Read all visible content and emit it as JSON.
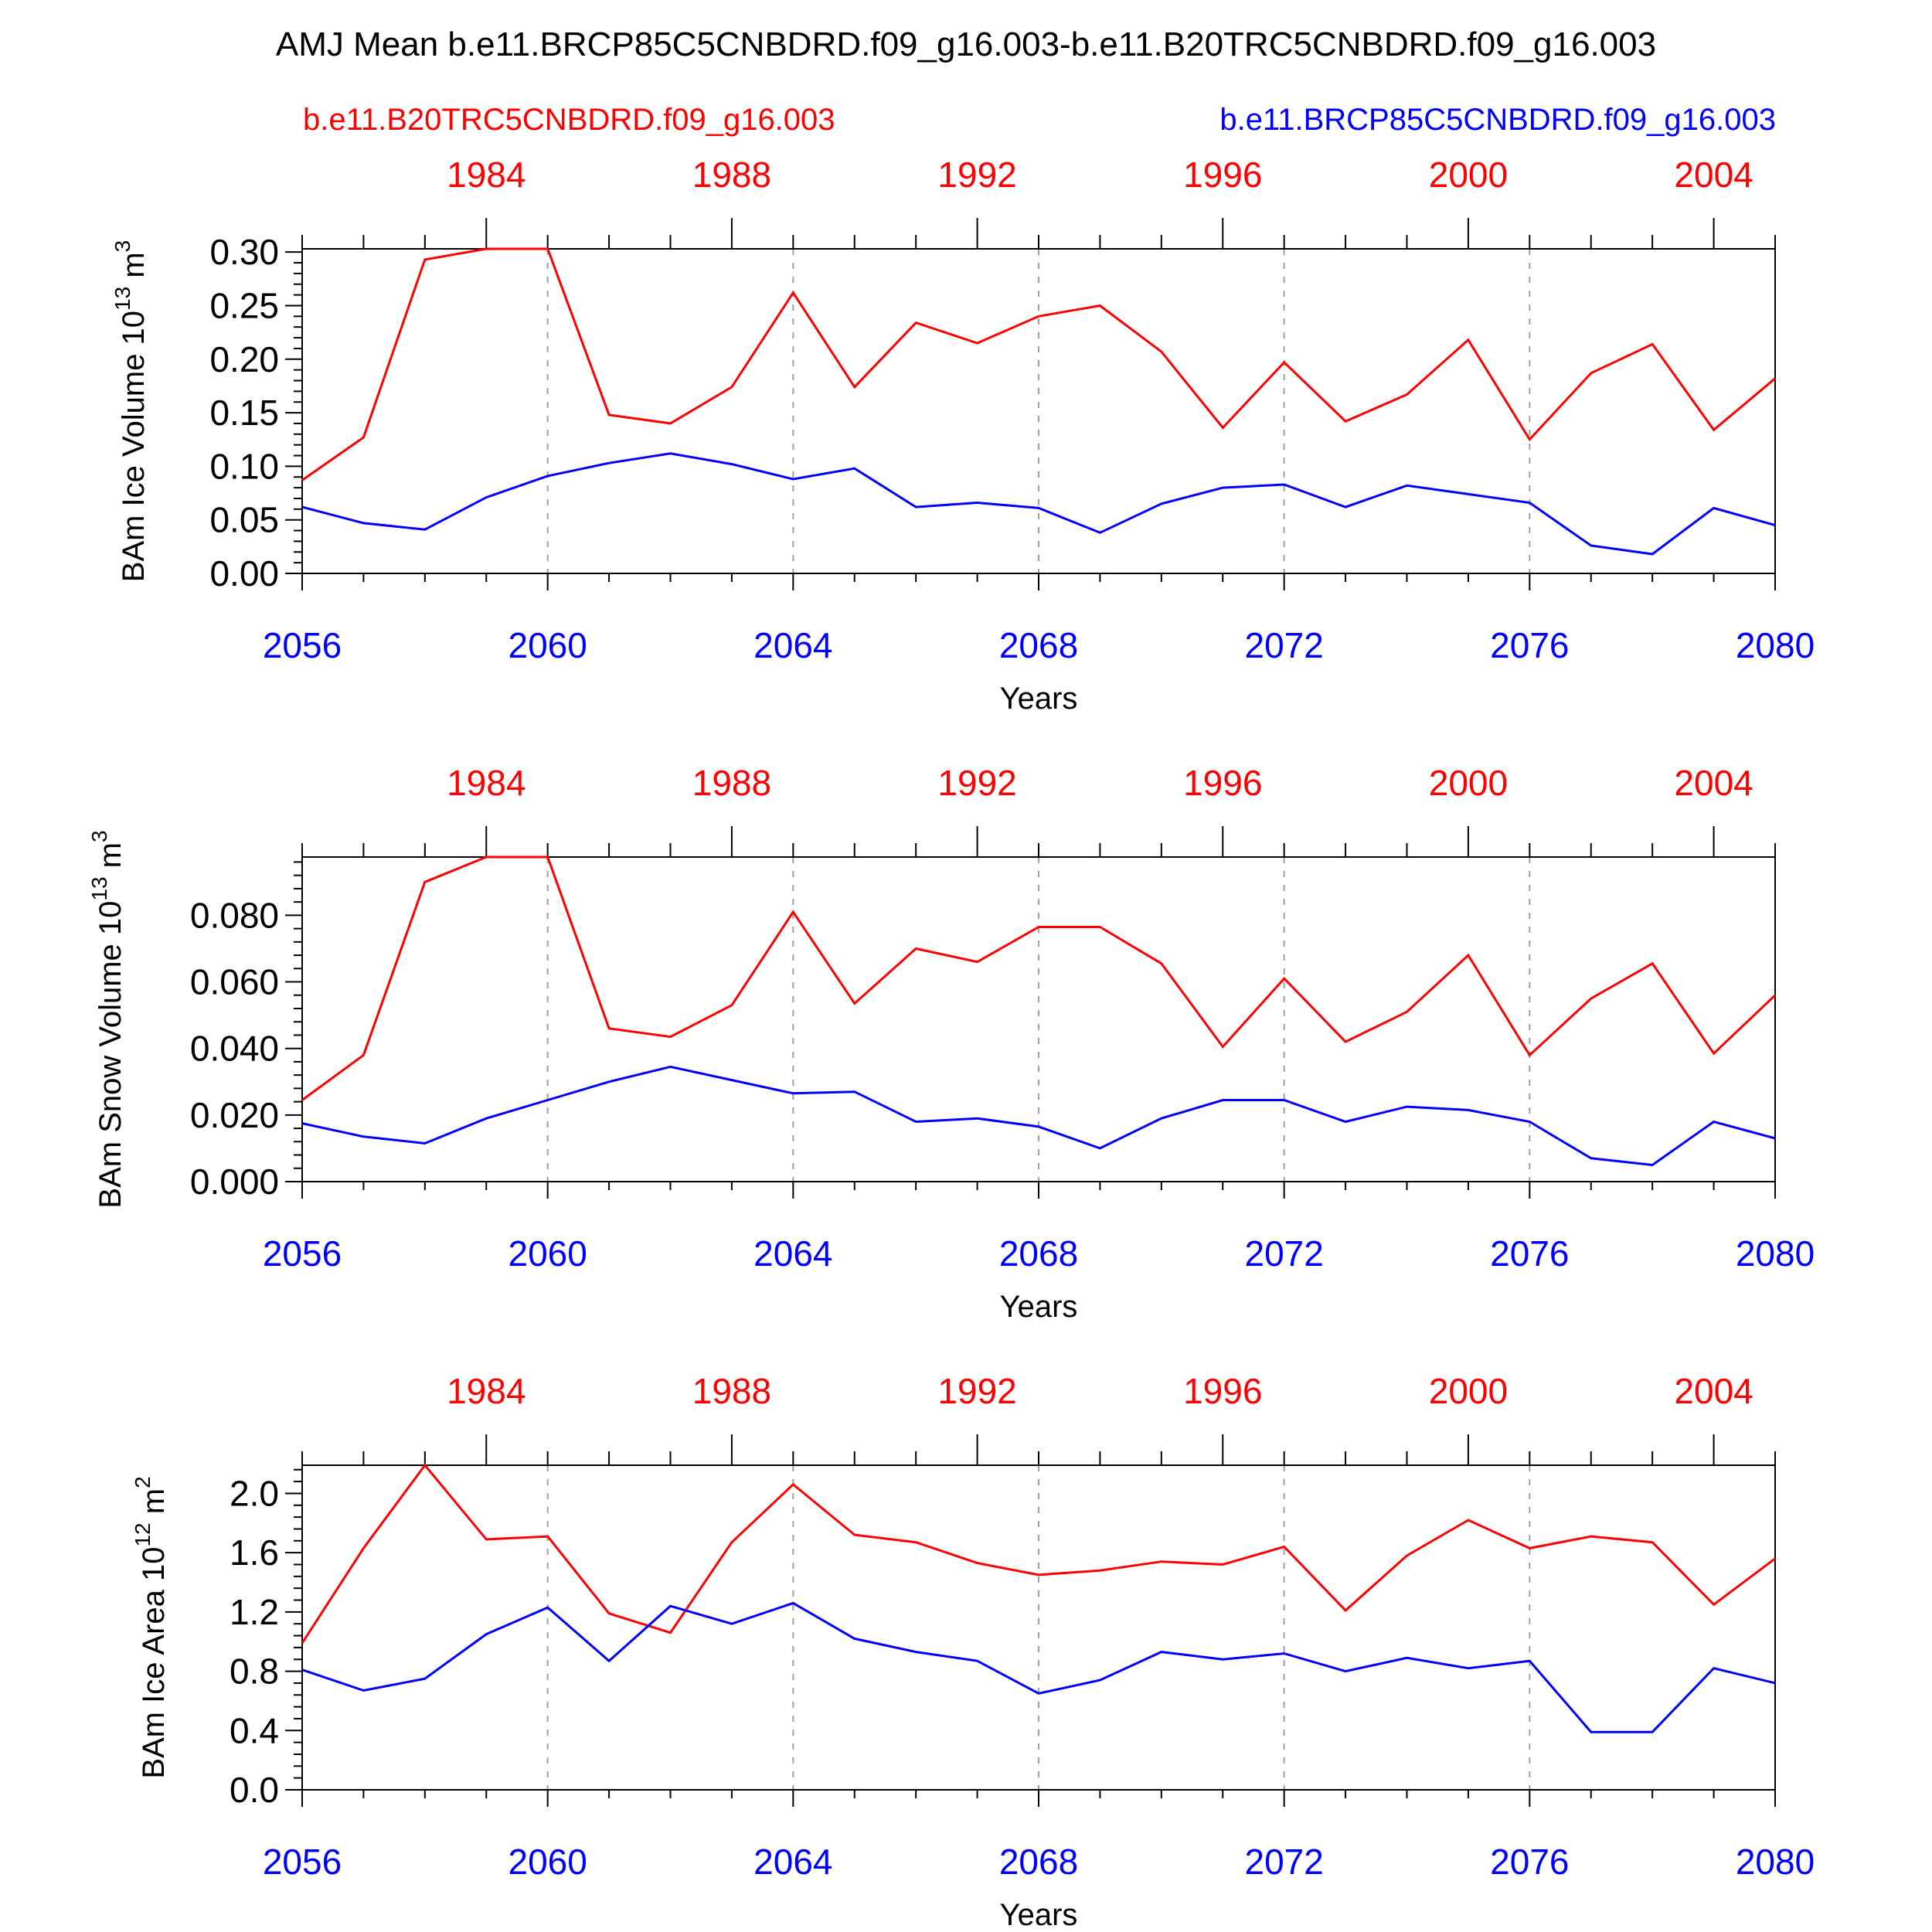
{
  "figure": {
    "title": "AMJ Mean b.e11.BRCP85C5CNBDRD.f09_g16.003-b.e11.B20TRC5CNBDRD.f09_g16.003",
    "left_subtitle": "b.e11.B20TRC5CNBDRD.f09_g16.003",
    "right_subtitle": "b.e11.BRCP85C5CNBDRD.f09_g16.003",
    "colors": {
      "historical": "#ff0000",
      "future": "#0000ff",
      "grid": "#a0a0a0"
    }
  },
  "chart_data": [
    {
      "type": "line",
      "ylabel": "BAm Ice Volume 10",
      "ylabel_exp": "13",
      "ylabel_unit": " m",
      "ylabel_unit_exp": "3",
      "xlabel": "Years",
      "xlim": [
        2056,
        2080
      ],
      "ylim": [
        0,
        0.303
      ],
      "yticks": [
        "0.00",
        "0.05",
        "0.10",
        "0.15",
        "0.20",
        "0.25",
        "0.30"
      ],
      "ytick_values": [
        0,
        0.05,
        0.1,
        0.15,
        0.2,
        0.25,
        0.3
      ],
      "bottom_ticks": [
        "2056",
        "2060",
        "2064",
        "2068",
        "2072",
        "2076",
        "2080"
      ],
      "top_ticks": [
        "1984",
        "1988",
        "1992",
        "1996",
        "2000",
        "2004"
      ],
      "top_tick_positions": [
        2059,
        2063,
        2067,
        2071,
        2075,
        2079
      ],
      "grid_x": [
        2060,
        2064,
        2068,
        2072,
        2076
      ],
      "series": [
        {
          "color": "#ff0000",
          "x": [
            2056,
            2057,
            2058,
            2059,
            2060,
            2061,
            2062,
            2063,
            2064,
            2065,
            2066,
            2067,
            2068,
            2069,
            2070,
            2071,
            2072,
            2073,
            2074,
            2075,
            2076,
            2077,
            2078,
            2079,
            2080
          ],
          "values": [
            0.087,
            0.127,
            0.293,
            0.303,
            0.303,
            0.148,
            0.14,
            0.174,
            0.262,
            0.174,
            0.234,
            0.215,
            0.24,
            0.25,
            0.207,
            0.136,
            0.197,
            0.142,
            0.167,
            0.218,
            0.125,
            0.187,
            0.214,
            0.134,
            0.182
          ]
        },
        {
          "color": "#0000ff",
          "x": [
            2056,
            2057,
            2058,
            2059,
            2060,
            2061,
            2062,
            2063,
            2064,
            2065,
            2066,
            2067,
            2068,
            2069,
            2070,
            2071,
            2072,
            2073,
            2074,
            2075,
            2076,
            2077,
            2078,
            2079,
            2080
          ],
          "values": [
            0.062,
            0.047,
            0.041,
            0.071,
            0.091,
            0.103,
            0.112,
            0.102,
            0.088,
            0.098,
            0.062,
            0.066,
            0.061,
            0.038,
            0.065,
            0.08,
            0.083,
            0.062,
            0.082,
            0.074,
            0.066,
            0.026,
            0.018,
            0.061,
            0.045
          ]
        }
      ]
    },
    {
      "type": "line",
      "ylabel": "BAm Snow Volume 10",
      "ylabel_exp": "13",
      "ylabel_unit": " m",
      "ylabel_unit_exp": "3",
      "xlabel": "Years",
      "xlim": [
        2056,
        2080
      ],
      "ylim": [
        0,
        0.0975
      ],
      "yticks": [
        "0.000",
        "0.020",
        "0.040",
        "0.060",
        "0.080"
      ],
      "ytick_values": [
        0,
        0.02,
        0.04,
        0.06,
        0.08
      ],
      "bottom_ticks": [
        "2056",
        "2060",
        "2064",
        "2068",
        "2072",
        "2076",
        "2080"
      ],
      "top_ticks": [
        "1984",
        "1988",
        "1992",
        "1996",
        "2000",
        "2004"
      ],
      "top_tick_positions": [
        2059,
        2063,
        2067,
        2071,
        2075,
        2079
      ],
      "grid_x": [
        2060,
        2064,
        2068,
        2072,
        2076
      ],
      "series": [
        {
          "color": "#ff0000",
          "x": [
            2056,
            2057,
            2058,
            2059,
            2060,
            2061,
            2062,
            2063,
            2064,
            2065,
            2066,
            2067,
            2068,
            2069,
            2070,
            2071,
            2072,
            2073,
            2074,
            2075,
            2076,
            2077,
            2078,
            2079,
            2080
          ],
          "values": [
            0.0245,
            0.038,
            0.09,
            0.0975,
            0.0975,
            0.046,
            0.0435,
            0.053,
            0.081,
            0.0535,
            0.07,
            0.066,
            0.0765,
            0.0765,
            0.0655,
            0.0405,
            0.061,
            0.042,
            0.051,
            0.068,
            0.038,
            0.055,
            0.0655,
            0.0385,
            0.056
          ]
        },
        {
          "color": "#0000ff",
          "x": [
            2056,
            2057,
            2058,
            2059,
            2060,
            2061,
            2062,
            2063,
            2064,
            2065,
            2066,
            2067,
            2068,
            2069,
            2070,
            2071,
            2072,
            2073,
            2074,
            2075,
            2076,
            2077,
            2078,
            2079,
            2080
          ],
          "values": [
            0.0175,
            0.0135,
            0.0115,
            0.019,
            0.0245,
            0.03,
            0.0345,
            0.0305,
            0.0265,
            0.027,
            0.018,
            0.019,
            0.0165,
            0.01,
            0.019,
            0.0245,
            0.0245,
            0.018,
            0.0225,
            0.0215,
            0.018,
            0.007,
            0.005,
            0.018,
            0.013
          ]
        }
      ]
    },
    {
      "type": "line",
      "ylabel": "BAm Ice Area 10",
      "ylabel_exp": "12",
      "ylabel_unit": " m",
      "ylabel_unit_exp": "2",
      "xlabel": "Years",
      "xlim": [
        2056,
        2080
      ],
      "ylim": [
        0,
        2.19
      ],
      "yticks": [
        "0.0",
        "0.4",
        "0.8",
        "1.2",
        "1.6",
        "2.0"
      ],
      "ytick_values": [
        0,
        0.4,
        0.8,
        1.2,
        1.6,
        2.0
      ],
      "bottom_ticks": [
        "2056",
        "2060",
        "2064",
        "2068",
        "2072",
        "2076",
        "2080"
      ],
      "top_ticks": [
        "1984",
        "1988",
        "1992",
        "1996",
        "2000",
        "2004"
      ],
      "top_tick_positions": [
        2059,
        2063,
        2067,
        2071,
        2075,
        2079
      ],
      "grid_x": [
        2060,
        2064,
        2068,
        2072,
        2076
      ],
      "series": [
        {
          "color": "#ff0000",
          "x": [
            2056,
            2057,
            2058,
            2059,
            2060,
            2061,
            2062,
            2063,
            2064,
            2065,
            2066,
            2067,
            2068,
            2069,
            2070,
            2071,
            2072,
            2073,
            2074,
            2075,
            2076,
            2077,
            2078,
            2079,
            2080
          ],
          "values": [
            0.99,
            1.63,
            2.19,
            1.69,
            1.71,
            1.19,
            1.06,
            1.67,
            2.06,
            1.72,
            1.67,
            1.53,
            1.45,
            1.48,
            1.54,
            1.52,
            1.64,
            1.21,
            1.58,
            1.82,
            1.63,
            1.71,
            1.67,
            1.25,
            1.56
          ]
        },
        {
          "color": "#0000ff",
          "x": [
            2056,
            2057,
            2058,
            2059,
            2060,
            2061,
            2062,
            2063,
            2064,
            2065,
            2066,
            2067,
            2068,
            2069,
            2070,
            2071,
            2072,
            2073,
            2074,
            2075,
            2076,
            2077,
            2078,
            2079,
            2080
          ],
          "values": [
            0.81,
            0.67,
            0.75,
            1.05,
            1.23,
            0.87,
            1.24,
            1.12,
            1.26,
            1.02,
            0.93,
            0.87,
            0.65,
            0.74,
            0.93,
            0.88,
            0.92,
            0.8,
            0.89,
            0.82,
            0.87,
            0.39,
            0.39,
            0.82,
            0.72
          ]
        }
      ]
    }
  ]
}
